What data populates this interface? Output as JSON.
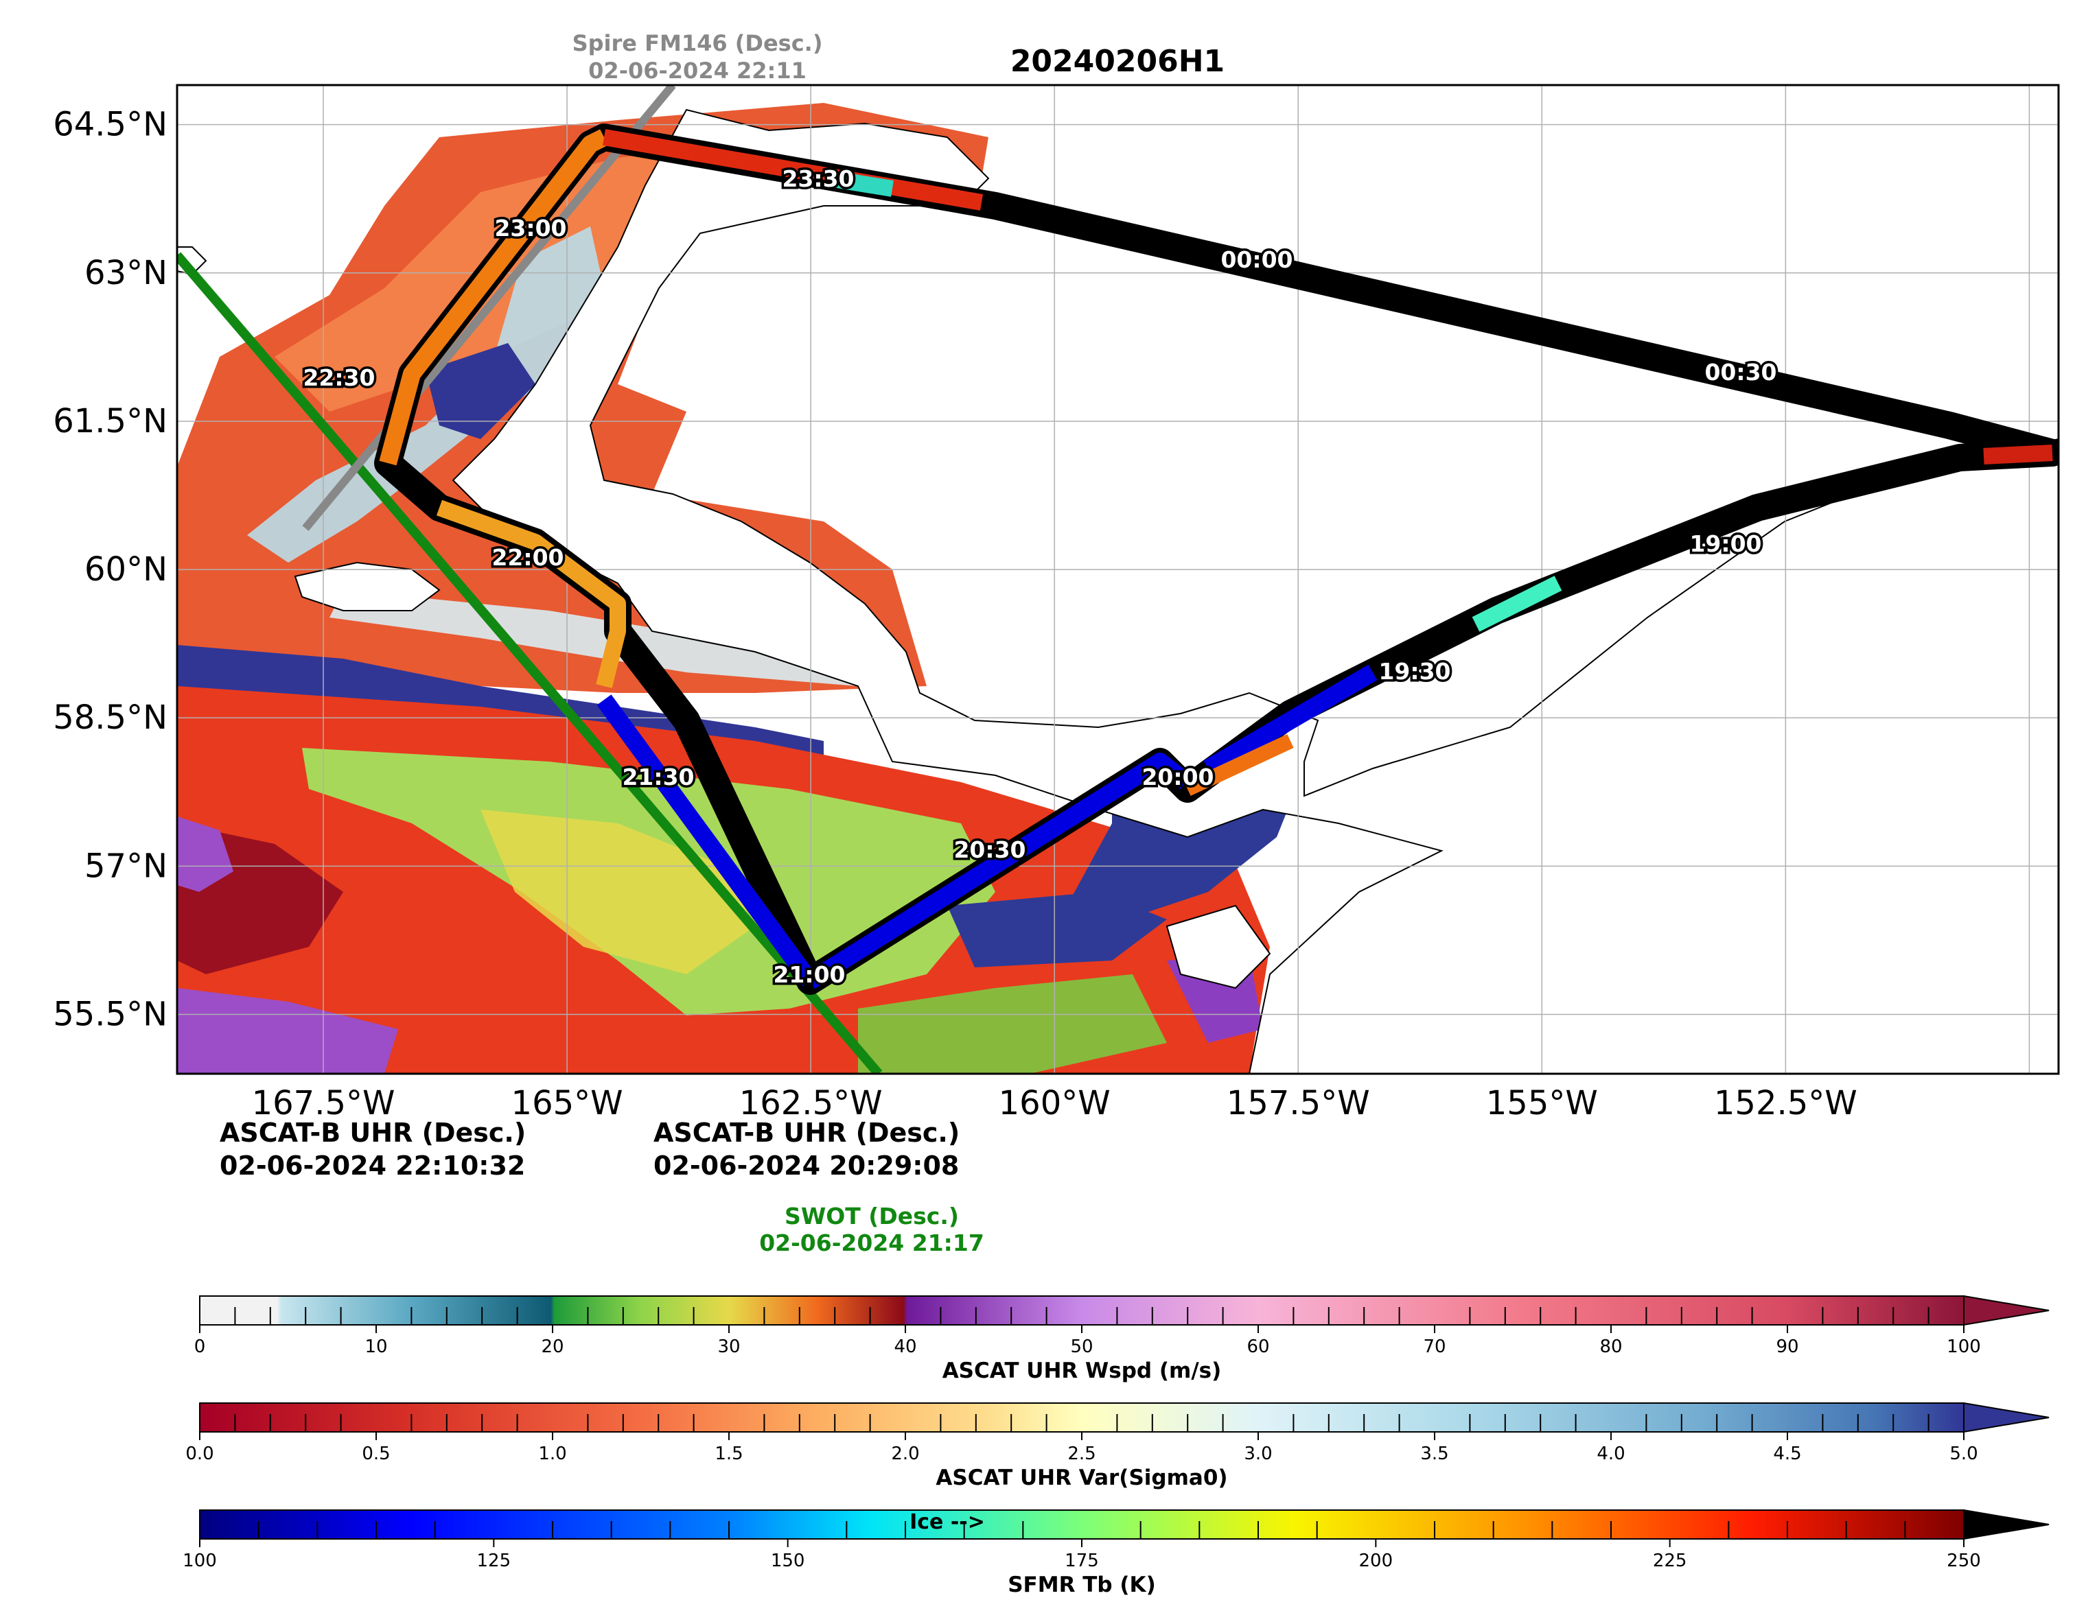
{
  "title": "20240206H1",
  "satellite_passes": {
    "spire": {
      "name": "Spire FM146 (Desc.)",
      "time": "02-06-2024 22:11",
      "color": "#888888"
    },
    "ascat_left": {
      "name": "ASCAT-B UHR (Desc.)",
      "time": "02-06-2024 22:10:32"
    },
    "ascat_right": {
      "name": "ASCAT-B UHR (Desc.)",
      "time": "02-06-2024 20:29:08"
    },
    "swot": {
      "name": "SWOT (Desc.)",
      "time": "02-06-2024 21:17",
      "color": "#118811"
    }
  },
  "axes": {
    "lat_ticks": [
      "64.5°N",
      "63°N",
      "61.5°N",
      "60°N",
      "58.5°N",
      "57°N",
      "55.5°N"
    ],
    "lon_ticks": [
      "167.5°W",
      "165°W",
      "162.5°W",
      "160°W",
      "157.5°W",
      "155°W",
      "152.5°W"
    ],
    "lon_values": [
      -167.5,
      -165,
      -162.5,
      -160,
      -157.5,
      -155,
      -152.5
    ],
    "lat_values": [
      64.5,
      63,
      61.5,
      60,
      58.5,
      57,
      55.5
    ],
    "lon_range": [
      -169.0,
      -149.7
    ],
    "lat_range": [
      54.9,
      64.9
    ],
    "grid": true
  },
  "flight_track": {
    "time_labels": [
      "19:00",
      "19:30",
      "20:00",
      "20:30",
      "21:00",
      "21:30",
      "22:00",
      "22:30",
      "23:00",
      "23:30",
      "00:00",
      "00:30"
    ]
  },
  "colorbars": {
    "wspd": {
      "label": "ASCAT UHR Wspd (m/s)",
      "ticks": [
        "0",
        "10",
        "20",
        "30",
        "40",
        "50",
        "60",
        "70",
        "80",
        "90",
        "100"
      ]
    },
    "var": {
      "label": "ASCAT UHR Var(Sigma0)",
      "ticks": [
        "0.0",
        "0.5",
        "1.0",
        "1.5",
        "2.0",
        "2.5",
        "3.0",
        "3.5",
        "4.0",
        "4.5",
        "5.0"
      ]
    },
    "tb": {
      "label": "SFMR Tb (K)",
      "ticks": [
        "100",
        "125",
        "150",
        "175",
        "200",
        "225",
        "250"
      ],
      "annotation": "Ice -->"
    }
  }
}
